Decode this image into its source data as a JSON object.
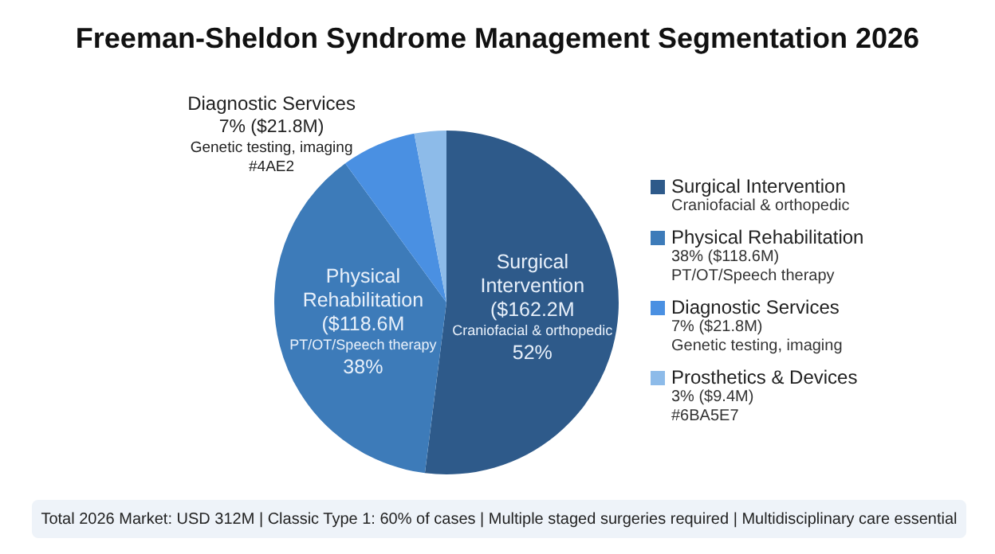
{
  "chart_data": {
    "type": "pie",
    "title": "Freeman-Sheldon Syndrome Management Segmentation 2026",
    "categories": [
      "Surgical Intervention",
      "Physical Rehabilitation",
      "Diagnostic Services",
      "Prosthetics & Devices"
    ],
    "values": [
      52,
      38,
      7,
      3
    ],
    "colors": [
      "#2e5a8a",
      "#3d7bb9",
      "#4a90e2",
      "#8dbbe9"
    ],
    "legend": "right",
    "annotations": [
      "Surgical\nIntervention\n($162.2M\nCraniofacial & orthopedic\n52%",
      "Physical\nRehabilitation\n($118.6M\nPT/OT/Speech therapy\n38%",
      "Diagnostic Services\n7% ($21.8M)\nGenetic testing, imaging\n#4AE2",
      "Craniofacial & orthopedic",
      "38% ($118.6M)\nPT/OT/Speech therapy",
      "7% ($21.8M)\nGenetic testing, imaging",
      "3% ($9.4M)\n#6BA5E7",
      "Total 2026 Market: USD 312M | Classic Type 1: 60% of cases | Multiple staged surgeries required | Multidisciplinary care essential"
    ]
  }
}
